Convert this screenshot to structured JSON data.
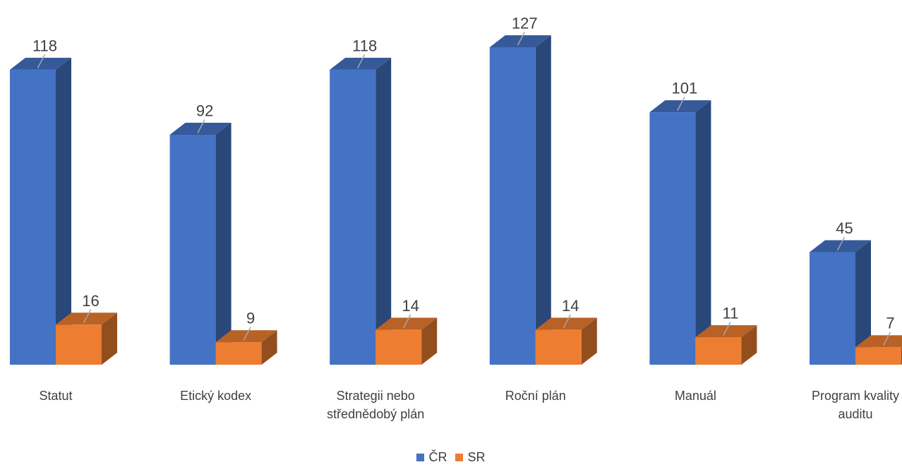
{
  "chart_data": {
    "type": "bar",
    "categories": [
      "Statut",
      "Etický kodex",
      "Strategii nebo střednědobý plán",
      "Roční plán",
      "Manuál",
      "Program kvality auditu"
    ],
    "series": [
      {
        "name": "ČR",
        "values": [
          118,
          92,
          118,
          127,
          101,
          45
        ],
        "color": "#4472C4"
      },
      {
        "name": "SR",
        "values": [
          16,
          9,
          14,
          14,
          11,
          7
        ],
        "color": "#ED7D31"
      }
    ],
    "ylim": [
      0,
      127
    ],
    "grid": false,
    "legend": "bottom",
    "style": "3d-clustered-column"
  },
  "category_lines": [
    [
      "Statut"
    ],
    [
      "Etický kodex"
    ],
    [
      "Strategii nebo",
      "střednědobý plán"
    ],
    [
      "Roční plán"
    ],
    [
      "Manuál"
    ],
    [
      "Program kvality",
      "auditu"
    ]
  ]
}
